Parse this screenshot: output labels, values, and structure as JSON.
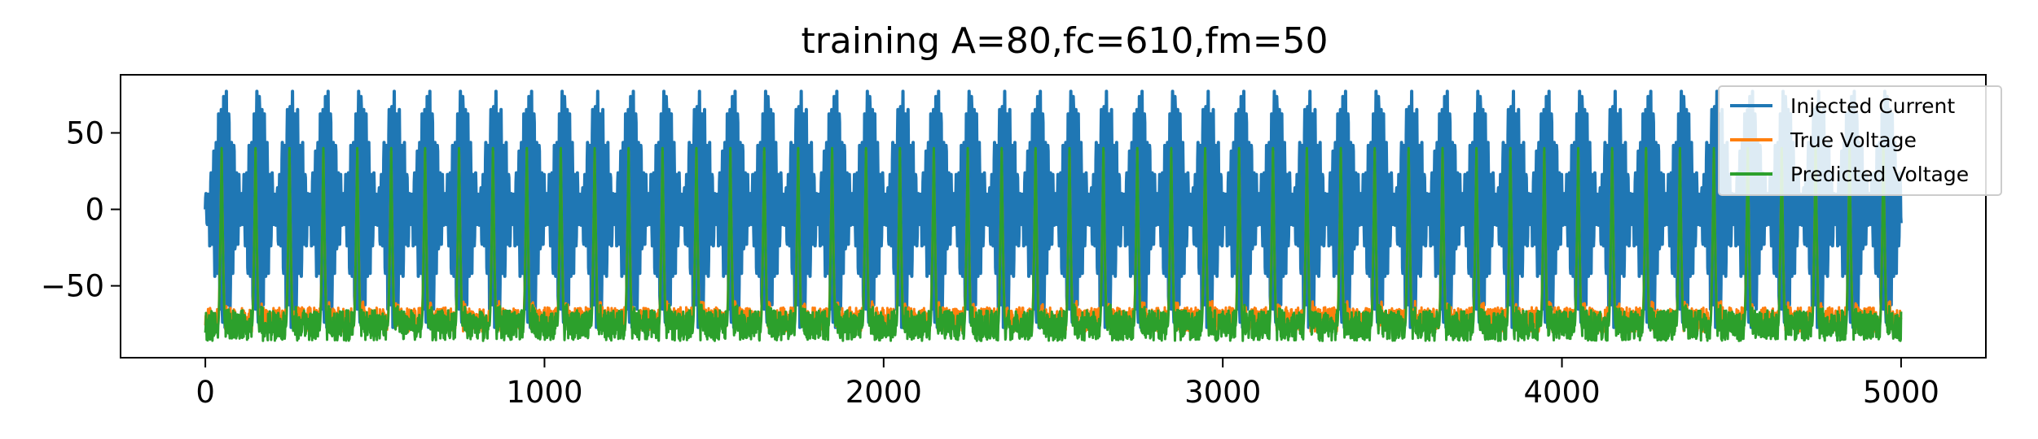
{
  "chart_data": {
    "type": "line",
    "title": "training A=80,fc=610,fm=50",
    "xlabel": "",
    "ylabel": "",
    "xlim": [
      -250,
      5250
    ],
    "ylim": [
      -97,
      88
    ],
    "xticks": [
      0,
      1000,
      2000,
      3000,
      4000,
      5000
    ],
    "xtick_labels": [
      "0",
      "1000",
      "2000",
      "3000",
      "4000",
      "5000"
    ],
    "yticks": [
      -50,
      0,
      50
    ],
    "ytick_labels": [
      "−50",
      "0",
      "50"
    ],
    "grid": false,
    "legend_position": "top-right",
    "n_samples": 5000,
    "series": [
      {
        "name": "Injected Current",
        "color": "#1f77b4",
        "signal": "carrier",
        "amplitude": 80,
        "carrier_period": 7.5,
        "envelope_period": 100,
        "envelope": [
          0.13,
          0.3,
          0.55,
          0.82,
          0.97,
          0.82,
          0.55,
          0.3
        ]
      },
      {
        "name": "True Voltage",
        "color": "#ff7f0e",
        "signal": "spike",
        "period": 100,
        "spike_offset": 48,
        "spike_peak": 38,
        "baseline": -72,
        "baseline_ripple": 8
      },
      {
        "name": "Predicted Voltage",
        "color": "#2ca02c",
        "signal": "spike",
        "period": 100,
        "spike_offset": 48,
        "spike_peak": 40,
        "baseline": -76,
        "baseline_ripple": 10
      }
    ]
  }
}
